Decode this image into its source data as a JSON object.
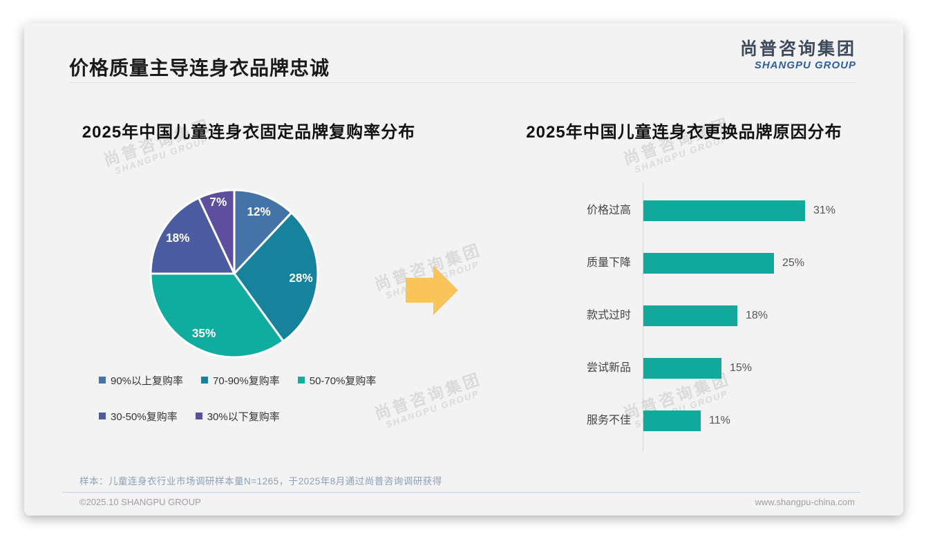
{
  "page": {
    "title": "价格质量主导连身衣品牌忠诚",
    "logo": {
      "cn": "尚普咨询集团",
      "en": "SHANGPU GROUP"
    },
    "watermark": {
      "cn": "尚普咨询集团",
      "en": "SHANGPU GROUP"
    },
    "note": "样本：儿童连身衣行业市场调研样本量N=1265，于2025年8月通过尚普咨询调研获得",
    "footer": {
      "left": "©2025.10 SHANGPU GROUP",
      "right": "www.shangpu-china.com"
    }
  },
  "colors": {
    "pie": [
      "#4573A8",
      "#17829B",
      "#0FAC9F",
      "#4C5CA1",
      "#5D4E9E"
    ],
    "bar": "#12A99D",
    "arrow": "#F9C45C"
  },
  "chart_data": [
    {
      "type": "pie",
      "title": "2025年中国儿童连身衣固定品牌复购率分布",
      "labels": [
        "90%以上复购率",
        "70-90%复购率",
        "50-70%复购率",
        "30-50%复购率",
        "30%以下复购率"
      ],
      "values": [
        12,
        28,
        35,
        18,
        7
      ],
      "data_labels": [
        "12%",
        "28%",
        "35%",
        "18%",
        "7%"
      ],
      "colors": [
        "#4573A8",
        "#17829B",
        "#0FAC9F",
        "#4C5CA1",
        "#5D4E9E"
      ],
      "legend_position": "bottom",
      "start_angle_deg": 0,
      "direction": "clockwise"
    },
    {
      "type": "bar",
      "title": "2025年中国儿童连身衣更换品牌原因分布",
      "orientation": "horizontal",
      "categories": [
        "价格过高",
        "质量下降",
        "款式过时",
        "尝试新品",
        "服务不佳"
      ],
      "values": [
        31,
        25,
        18,
        15,
        11
      ],
      "data_labels": [
        "31%",
        "25%",
        "18%",
        "15%",
        "11%"
      ],
      "bar_color": "#12A99D",
      "xlim": [
        0,
        35
      ],
      "grid": false
    }
  ]
}
